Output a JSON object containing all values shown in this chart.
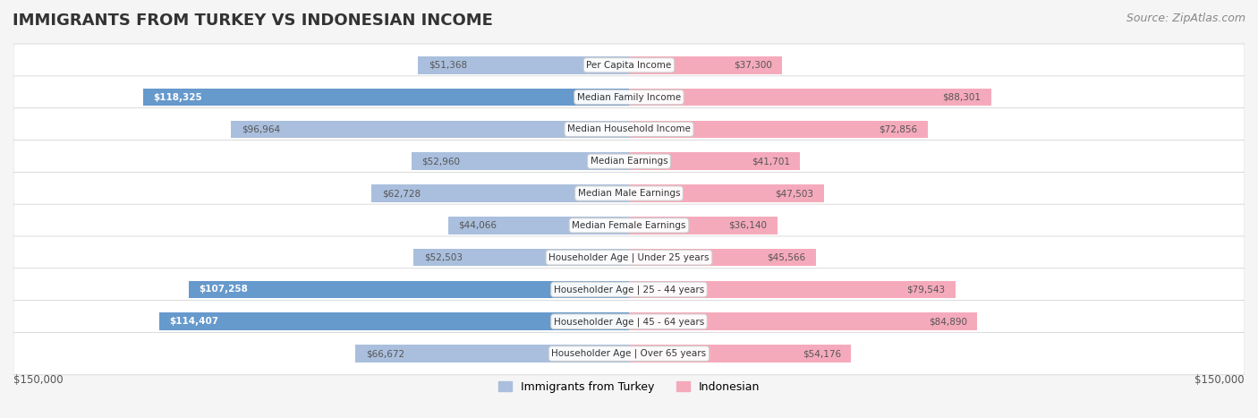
{
  "title": "IMMIGRANTS FROM TURKEY VS INDONESIAN INCOME",
  "source": "Source: ZipAtlas.com",
  "categories": [
    "Per Capita Income",
    "Median Family Income",
    "Median Household Income",
    "Median Earnings",
    "Median Male Earnings",
    "Median Female Earnings",
    "Householder Age | Under 25 years",
    "Householder Age | 25 - 44 years",
    "Householder Age | 45 - 64 years",
    "Householder Age | Over 65 years"
  ],
  "turkey_values": [
    51368,
    118325,
    96964,
    52960,
    62728,
    44066,
    52503,
    107258,
    114407,
    66672
  ],
  "indonesian_values": [
    37300,
    88301,
    72856,
    41701,
    47503,
    36140,
    45566,
    79543,
    84890,
    54176
  ],
  "turkey_color_strong": "#6699CC",
  "turkey_color_light": "#AABFDD",
  "indonesian_color_strong": "#EE6688",
  "indonesian_color_light": "#F5AABB",
  "turkey_strong_threshold": 100000,
  "indonesian_strong_threshold": 100000,
  "xlim": 150000,
  "xlabel_left": "$150,000",
  "xlabel_right": "$150,000",
  "background_color": "#f5f5f5",
  "bar_bg_color": "#ffffff",
  "label_color": "#555555",
  "title_fontsize": 13,
  "source_fontsize": 9,
  "bar_height": 0.55,
  "legend_turkey": "Immigrants from Turkey",
  "legend_indonesian": "Indonesian"
}
